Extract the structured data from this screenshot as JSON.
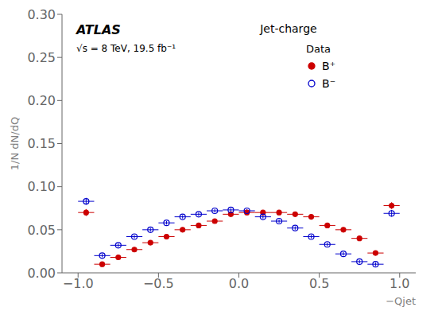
{
  "chart_data": {
    "type": "scatter",
    "title": "ATLAS",
    "subtitle": "√s = 8 TeV, 19.5 fb⁻¹",
    "annotations": [
      "Jet-charge",
      "Data"
    ],
    "x_label": "−Qjet",
    "y_label": "1/N dN/dQ",
    "x": [
      -0.95,
      -0.85,
      -0.75,
      -0.65,
      -0.55,
      -0.45,
      -0.35,
      -0.25,
      -0.15,
      -0.05,
      0.05,
      0.15,
      0.25,
      0.35,
      0.45,
      0.55,
      0.65,
      0.75,
      0.85,
      0.95
    ],
    "series": [
      {
        "name": "B⁺",
        "color": "#cc0000",
        "marker": "circle",
        "values": [
          0.07,
          0.01,
          0.018,
          0.027,
          0.035,
          0.042,
          0.05,
          0.055,
          0.06,
          0.068,
          0.07,
          0.07,
          0.07,
          0.068,
          0.065,
          0.055,
          0.05,
          0.04,
          0.023,
          0.078
        ],
        "xerr": [
          0.05,
          0.05,
          0.05,
          0.05,
          0.05,
          0.05,
          0.05,
          0.05,
          0.05,
          0.05,
          0.05,
          0.05,
          0.05,
          0.05,
          0.05,
          0.05,
          0.05,
          0.05,
          0.05,
          0.05
        ],
        "yerr": [
          0.004,
          0.002,
          0.002,
          0.002,
          0.002,
          0.002,
          0.002,
          0.002,
          0.002,
          0.002,
          0.002,
          0.002,
          0.002,
          0.002,
          0.002,
          0.002,
          0.002,
          0.002,
          0.002,
          0.004
        ]
      },
      {
        "name": "B⁻",
        "color": "#0000cc",
        "marker": "open_circle",
        "values": [
          0.083,
          0.02,
          0.032,
          0.042,
          0.05,
          0.058,
          0.065,
          0.068,
          0.072,
          0.073,
          0.072,
          0.065,
          0.06,
          0.052,
          0.042,
          0.033,
          0.022,
          0.013,
          0.01,
          0.069
        ],
        "xerr": [
          0.05,
          0.05,
          0.05,
          0.05,
          0.05,
          0.05,
          0.05,
          0.05,
          0.05,
          0.05,
          0.05,
          0.05,
          0.05,
          0.05,
          0.05,
          0.05,
          0.05,
          0.05,
          0.05,
          0.05
        ],
        "yerr": [
          0.004,
          0.002,
          0.002,
          0.002,
          0.002,
          0.002,
          0.002,
          0.002,
          0.002,
          0.002,
          0.002,
          0.002,
          0.002,
          0.002,
          0.002,
          0.002,
          0.002,
          0.002,
          0.002,
          0.004
        ]
      }
    ],
    "xlim": [
      -1.1,
      1.1
    ],
    "ylim": [
      0,
      0.3
    ],
    "xticks": [
      {
        "value": -1,
        "label": "−1.0"
      },
      {
        "value": -0.5,
        "label": "−0.5"
      },
      {
        "value": 0,
        "label": "0.0"
      },
      0.5,
      {
        "value": 1,
        "label": "1.0"
      }
    ],
    "yticks": [
      {
        "value": 0,
        "label": "0.00"
      },
      0.05,
      {
        "value": 0.1,
        "label": "0.10"
      },
      0.15,
      {
        "value": 0.2,
        "label": "0.20"
      },
      0.25,
      {
        "value": 0.3,
        "label": "0.30"
      }
    ],
    "grid": false,
    "legend": "upper right"
  }
}
